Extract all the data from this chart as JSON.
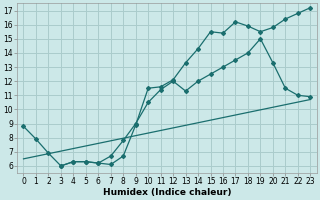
{
  "xlabel": "Humidex (Indice chaleur)",
  "bg_color": "#cce8e8",
  "grid_color": "#aacccc",
  "line_color": "#1a6e6e",
  "xlim": [
    -0.5,
    23.5
  ],
  "ylim": [
    5.5,
    17.5
  ],
  "xticks": [
    0,
    1,
    2,
    3,
    4,
    5,
    6,
    7,
    8,
    9,
    10,
    11,
    12,
    13,
    14,
    15,
    16,
    17,
    18,
    19,
    20,
    21,
    22,
    23
  ],
  "yticks": [
    6,
    7,
    8,
    9,
    10,
    11,
    12,
    13,
    14,
    15,
    16,
    17
  ],
  "series1_x": [
    0,
    1,
    2,
    3,
    4,
    5,
    6,
    7,
    8,
    9,
    10,
    11,
    12,
    13,
    14,
    15,
    16,
    17,
    18,
    19,
    20,
    21,
    22,
    23
  ],
  "series1_y": [
    8.8,
    7.9,
    6.9,
    6.0,
    6.3,
    6.3,
    6.2,
    6.1,
    6.7,
    8.9,
    11.5,
    11.6,
    12.1,
    13.3,
    14.3,
    15.5,
    15.4,
    16.2,
    15.9,
    15.5,
    15.8,
    16.4,
    16.8,
    17.2
  ],
  "series2_x": [
    3,
    4,
    5,
    6,
    7,
    8,
    9,
    10,
    11,
    12,
    13,
    14,
    15,
    16,
    17,
    18,
    19,
    20,
    21,
    22,
    23
  ],
  "series2_y": [
    6.0,
    6.3,
    6.3,
    6.2,
    6.7,
    7.8,
    9.0,
    10.5,
    11.4,
    12.0,
    11.3,
    12.0,
    12.5,
    13.0,
    13.5,
    14.0,
    15.0,
    13.3,
    11.5,
    11.0,
    10.9
  ],
  "series3_x": [
    0,
    23
  ],
  "series3_y": [
    6.5,
    10.7
  ],
  "xlabel_fontsize": 6.5,
  "tick_fontsize": 5.5,
  "marker_size": 2.0,
  "line_width": 0.9
}
